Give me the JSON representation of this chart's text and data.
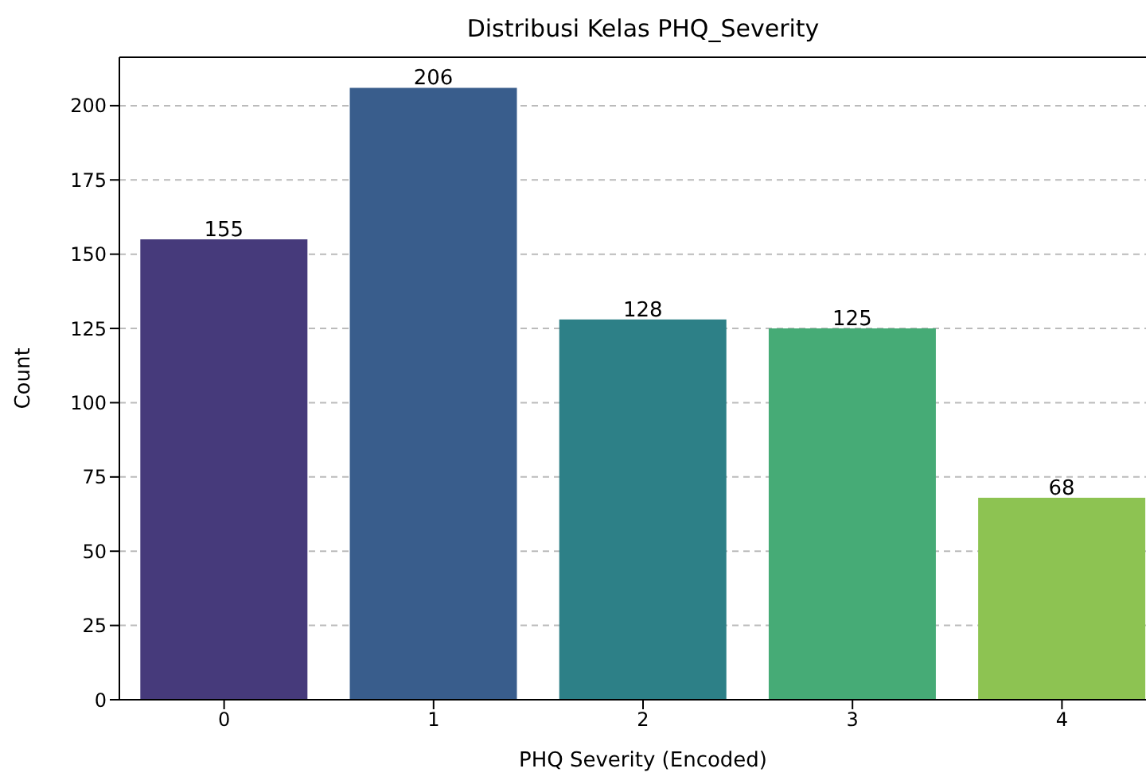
{
  "chart_data": {
    "type": "bar",
    "title": "Distribusi Kelas PHQ_Severity",
    "xlabel": "PHQ Severity (Encoded)",
    "ylabel": "Count",
    "categories": [
      "0",
      "1",
      "2",
      "3",
      "4"
    ],
    "values": [
      155,
      206,
      128,
      125,
      68
    ],
    "colors": [
      "#463a7b",
      "#395d8c",
      "#2d8087",
      "#46ab76",
      "#8dc352"
    ],
    "ylim": [
      0,
      216.3
    ],
    "yticks": [
      0,
      25,
      50,
      75,
      100,
      125,
      150,
      175,
      200
    ],
    "grid": "y",
    "data_labels": true
  }
}
